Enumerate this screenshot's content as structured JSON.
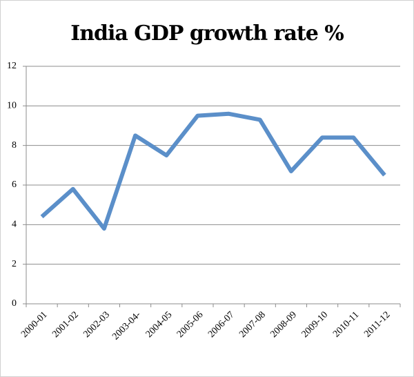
{
  "chart_data": {
    "type": "line",
    "title": "India GDP growth rate %",
    "categories": [
      "2000-01",
      "2001-02",
      "2002-03",
      "2003-04-",
      "2004-05",
      "2005-06",
      "2006-07",
      "2007-08",
      "2008-09",
      "2009-10",
      "2010-11",
      "2011-12"
    ],
    "values": [
      4.4,
      5.8,
      3.8,
      8.5,
      7.5,
      9.5,
      9.6,
      9.3,
      6.7,
      8.4,
      8.4,
      6.5
    ],
    "color": "#5b8fc9",
    "ylim": [
      0,
      12
    ],
    "yticks": [
      0,
      2,
      4,
      6,
      8,
      10,
      12
    ],
    "grid": true
  }
}
